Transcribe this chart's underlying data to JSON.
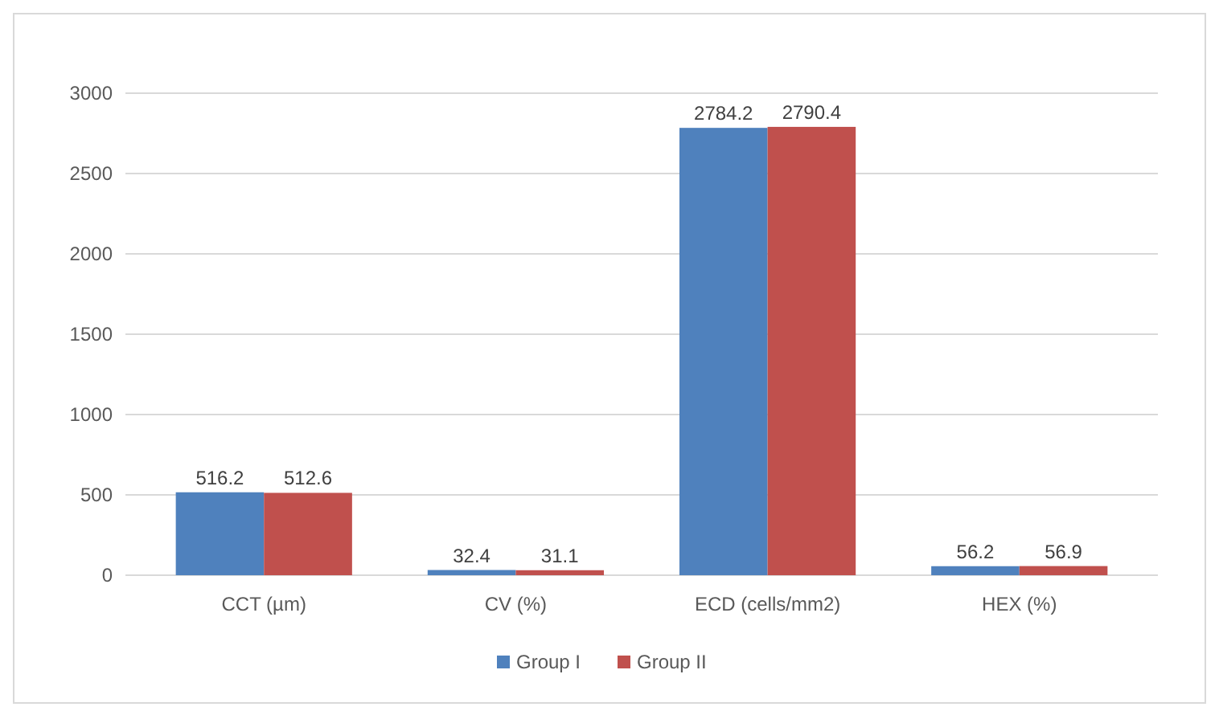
{
  "chart_data": {
    "type": "bar",
    "categories": [
      "CCT (µm)",
      "CV (%)",
      "ECD (cells/mm2)",
      "HEX (%)"
    ],
    "series": [
      {
        "name": "Group I",
        "color": "#4f81bd",
        "values": [
          516.2,
          32.4,
          2784.2,
          56.2
        ]
      },
      {
        "name": "Group II",
        "color": "#c0504d",
        "values": [
          512.6,
          31.1,
          2790.4,
          56.9
        ]
      }
    ],
    "ylim": [
      0,
      3000
    ],
    "yticks": [
      0,
      500,
      1000,
      1500,
      2000,
      2500,
      3000
    ],
    "grid": "y",
    "legend": "bottom",
    "data_labels": true
  }
}
